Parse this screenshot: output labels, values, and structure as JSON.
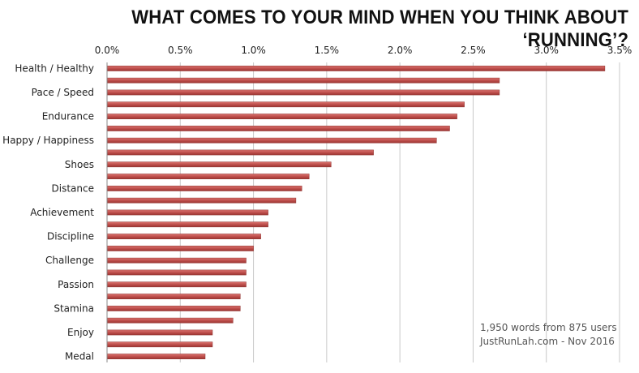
{
  "chart_data": {
    "type": "bar",
    "orientation": "horizontal",
    "title": "WHAT COMES TO YOUR MIND WHEN YOU THINK ABOUT ‘RUNNING’?",
    "xlim": [
      0,
      3.5
    ],
    "x_ticks": [
      "0.0%",
      "0.5%",
      "1.0%",
      "1.5%",
      "2.0%",
      "2.5%",
      "3.0%",
      "3.5%"
    ],
    "grid": true,
    "bar_color": "#c0504d",
    "categories": [
      "Health / Healthy",
      "",
      "Pace / Speed",
      "",
      "Endurance",
      "",
      "Happy / Happiness",
      "",
      "Shoes",
      "",
      "Distance",
      "",
      "Achievement",
      "",
      "Discipline",
      "",
      "Challenge",
      "",
      "Passion",
      "",
      "Stamina",
      "",
      "Enjoy",
      "",
      "Medal"
    ],
    "values": [
      3.4,
      2.68,
      2.68,
      2.44,
      2.39,
      2.34,
      2.25,
      1.82,
      1.53,
      1.38,
      1.33,
      1.29,
      1.1,
      1.1,
      1.05,
      1.0,
      0.95,
      0.95,
      0.95,
      0.91,
      0.91,
      0.86,
      0.72,
      0.72,
      0.67
    ],
    "annotation": [
      "1,950 words from 875 users",
      "JustRunLah.com - Nov 2016"
    ]
  }
}
